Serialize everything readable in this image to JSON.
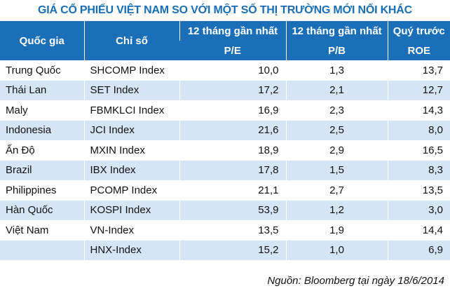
{
  "title": "GIÁ CỔ PHIẾU VIỆT NAM SO VỚI MỘT SỐ THỊ TRƯỜNG MỚI NỔI KHÁC",
  "columns": [
    {
      "label": "Quốc gia"
    },
    {
      "label": "Chỉ số"
    },
    {
      "label": "12 tháng gần nhất",
      "sub": "P/E"
    },
    {
      "label": "12 tháng gần nhất",
      "sub": "P/B"
    },
    {
      "label": "Quý trước",
      "sub": "ROE"
    }
  ],
  "rows": [
    [
      "Trung Quốc",
      "SHCOMP Index",
      "10,0",
      "1,3",
      "13,7"
    ],
    [
      "Thái Lan",
      "SET Index",
      "17,2",
      "2,1",
      "12,7"
    ],
    [
      "Maly",
      "FBMKLCI Index",
      "16,9",
      "2,3",
      "14,3"
    ],
    [
      "Indonesia",
      "JCI Index",
      "21,6",
      "2,5",
      "8,0"
    ],
    [
      "Ấn Độ",
      "MXIN Index",
      "18,9",
      "2,9",
      "16,5"
    ],
    [
      "Brazil",
      "IBX Index",
      "17,8",
      "1,5",
      "8,3"
    ],
    [
      "Philippines",
      "PCOMP Index",
      "21,1",
      "2,7",
      "13,5"
    ],
    [
      "Hàn Quốc",
      "KOSPI Index",
      "53,9",
      "1,2",
      "3,0"
    ],
    [
      "Việt Nam",
      "VN-Index",
      "13,5",
      "1,9",
      "14,4"
    ],
    [
      null,
      "HNX-Index",
      "15,2",
      "1,0",
      "6,9"
    ]
  ],
  "source": "Nguồn: Bloomberg tại ngày 18/6/2014"
}
